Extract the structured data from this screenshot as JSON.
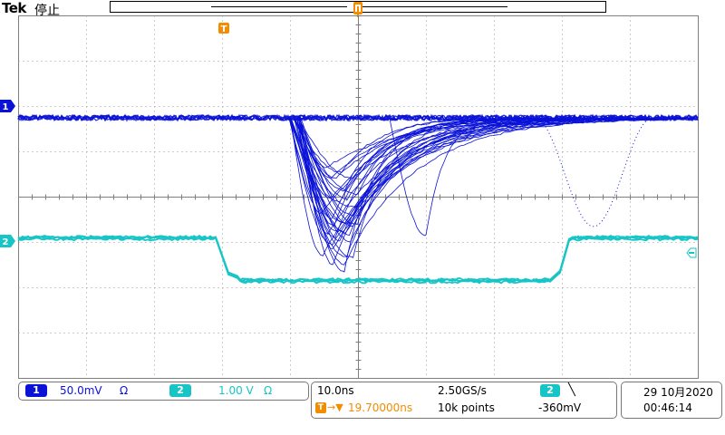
{
  "brand": "Tek",
  "status": "停止",
  "trigger_marker": "T",
  "channels": {
    "ch1": {
      "id": "1",
      "scale": "50.0mV",
      "coupling": "Ω",
      "color": "#0a12d8"
    },
    "ch2": {
      "id": "2",
      "scale": "1.00 V",
      "coupling": "Ω",
      "color": "#17c5c7"
    }
  },
  "timebase": {
    "scale": "10.0ns",
    "sample_rate": "2.50GS/s",
    "record_length": "10k points",
    "trigger_position": "19.70000ns",
    "trigger_source": "2",
    "trigger_slope": "╲",
    "trigger_level": "-360mV"
  },
  "datetime": {
    "date": "29 10月2020",
    "time": "00:46:14"
  },
  "colors": {
    "grid": "#7f7f7f",
    "accent": "#f28c00"
  }
}
